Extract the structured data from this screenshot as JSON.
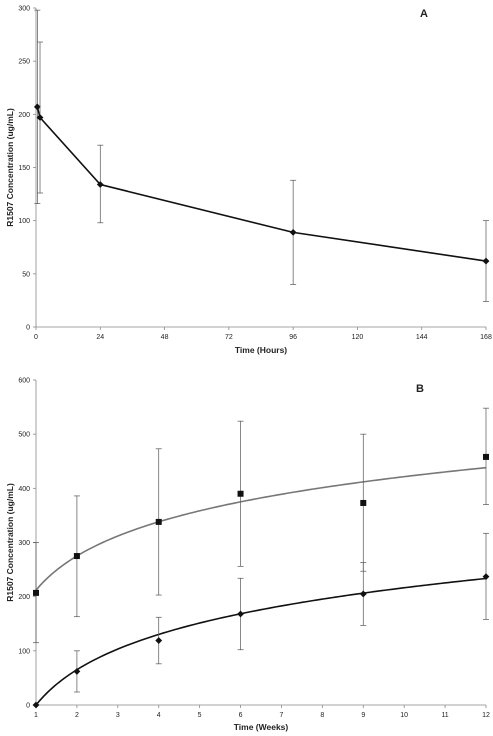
{
  "chart_data": [
    {
      "type": "line",
      "panel_label": "A",
      "xlabel": "Time (Hours)",
      "ylabel": "R1507 Concentration (ug/mL)",
      "xlim": [
        0,
        168
      ],
      "ylim": [
        0,
        300
      ],
      "x_ticks": [
        0,
        24,
        48,
        72,
        96,
        120,
        144,
        168
      ],
      "y_ticks": [
        0,
        50,
        100,
        150,
        200,
        250,
        300
      ],
      "grid": false,
      "legend": "none",
      "series": [
        {
          "marker": "diamond",
          "color": "#111111",
          "points": [
            {
              "x": 0.5,
              "y": 207,
              "err_low": 116,
              "err_high": 298
            },
            {
              "x": 1.5,
              "y": 197,
              "err_low": 126,
              "err_high": 268
            },
            {
              "x": 24,
              "y": 134,
              "err_low": 98,
              "err_high": 171
            },
            {
              "x": 96,
              "y": 89,
              "err_low": 40,
              "err_high": 138
            },
            {
              "x": 168,
              "y": 62,
              "err_low": 24,
              "err_high": 100
            }
          ]
        }
      ]
    },
    {
      "type": "scatter",
      "panel_label": "B",
      "xlabel": "Time (Weeks)",
      "ylabel": "R1507 Concentration (ug/mL)",
      "xlim": [
        1,
        12
      ],
      "ylim": [
        0,
        600
      ],
      "x_ticks": [
        1,
        2,
        3,
        4,
        5,
        6,
        7,
        8,
        9,
        10,
        11,
        12
      ],
      "y_ticks": [
        0,
        100,
        200,
        300,
        400,
        500,
        600
      ],
      "grid": false,
      "legend": "none",
      "series": [
        {
          "marker": "square",
          "color": "#111111",
          "fit_color": "#777777",
          "fit": {
            "type": "log",
            "a": 212,
            "b": 91
          },
          "points": [
            {
              "x": 1,
              "y": 207,
              "err_low": 115,
              "err_high": 300
            },
            {
              "x": 2,
              "y": 275,
              "err_low": 163,
              "err_high": 386
            },
            {
              "x": 4,
              "y": 338,
              "err_low": 203,
              "err_high": 473
            },
            {
              "x": 6,
              "y": 390,
              "err_low": 256,
              "err_high": 524
            },
            {
              "x": 9,
              "y": 373,
              "err_low": 247,
              "err_high": 500
            },
            {
              "x": 12,
              "y": 458,
              "err_low": 370,
              "err_high": 548
            }
          ]
        },
        {
          "marker": "diamond",
          "color": "#111111",
          "fit_color": "#111111",
          "fit": {
            "type": "log",
            "a": 0,
            "b": 94
          },
          "points": [
            {
              "x": 1,
              "y": 0,
              "err_low": 0,
              "err_high": 0
            },
            {
              "x": 2,
              "y": 62,
              "err_low": 24,
              "err_high": 100
            },
            {
              "x": 4,
              "y": 119,
              "err_low": 76,
              "err_high": 162
            },
            {
              "x": 6,
              "y": 168,
              "err_low": 102,
              "err_high": 234
            },
            {
              "x": 9,
              "y": 205,
              "err_low": 147,
              "err_high": 263
            },
            {
              "x": 12,
              "y": 237,
              "err_low": 158,
              "err_high": 317
            }
          ]
        }
      ]
    }
  ]
}
